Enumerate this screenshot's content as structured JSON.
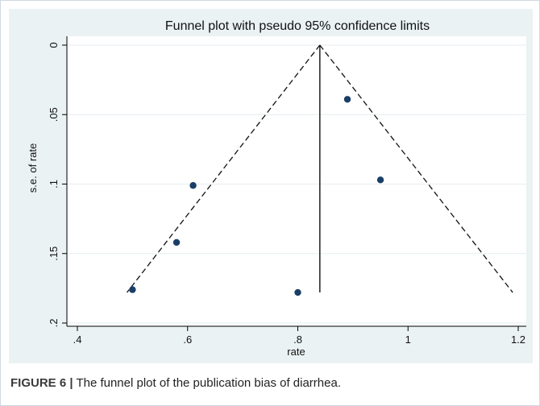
{
  "chart_data": {
    "type": "scatter",
    "title": "Funnel plot with pseudo 95% confidence limits",
    "xlabel": "rate",
    "ylabel": "s.e. of rate",
    "xlim": [
      0.4,
      1.2
    ],
    "ylim": [
      0,
      0.2
    ],
    "y_inverted": true,
    "x_ticks": [
      ".4",
      ".6",
      ".8",
      "1",
      "1.2"
    ],
    "x_tick_values": [
      0.4,
      0.6,
      0.8,
      1.0,
      1.2
    ],
    "y_ticks": [
      "0",
      ".05",
      ".1",
      ".15",
      ".2"
    ],
    "y_tick_values": [
      0,
      0.05,
      0.1,
      0.15,
      0.2
    ],
    "grid": true,
    "pooled_estimate": 0.84,
    "points": [
      {
        "x": 0.89,
        "y": 0.039
      },
      {
        "x": 0.95,
        "y": 0.097
      },
      {
        "x": 0.61,
        "y": 0.101
      },
      {
        "x": 0.58,
        "y": 0.142
      },
      {
        "x": 0.5,
        "y": 0.176
      },
      {
        "x": 0.8,
        "y": 0.178
      }
    ],
    "ci_lines": [
      {
        "x1": 0.84,
        "y1": 0,
        "x2": 0.49,
        "y2": 0.178
      },
      {
        "x1": 0.84,
        "y1": 0,
        "x2": 1.19,
        "y2": 0.178
      }
    ],
    "center_line": {
      "x": 0.84,
      "y1": 0,
      "y2": 0.178
    },
    "colors": {
      "marker": "#1a3f66",
      "background": "#eaf2f3",
      "panel": "#ffffff",
      "grid": "#e6eef0"
    }
  },
  "caption": {
    "label": "FIGURE 6 |",
    "text": " The funnel plot of the publication bias of diarrhea."
  }
}
